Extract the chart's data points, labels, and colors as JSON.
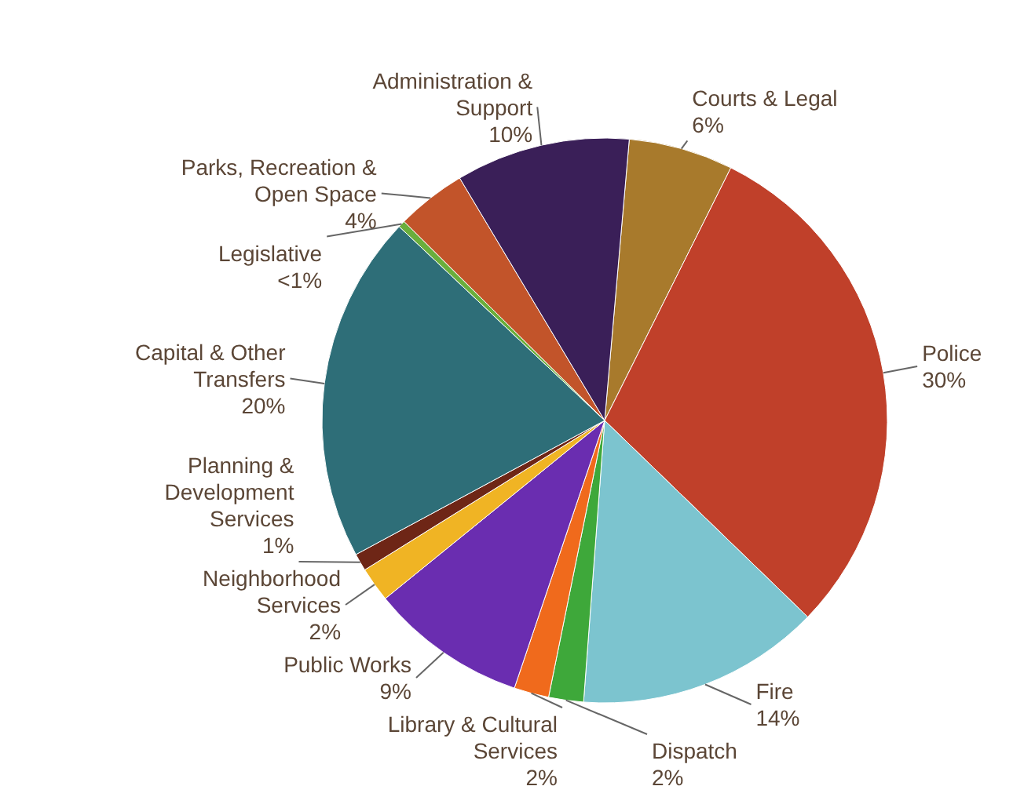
{
  "chart_data": {
    "type": "pie",
    "categories": [
      "Courts & Legal",
      "Police",
      "Fire",
      "Dispatch",
      "Library & Cultural Services",
      "Public Works",
      "Neighborhood Services",
      "Planning & Development Services",
      "Capital & Other Transfers",
      "Legislative",
      "Parks, Recreation & Open Space",
      "Administration & Support"
    ],
    "values": [
      6,
      30,
      14,
      2,
      2,
      9,
      2,
      1,
      20,
      0.4,
      4,
      10
    ],
    "value_labels": [
      "6%",
      "30%",
      "14%",
      "2%",
      "2%",
      "9%",
      "2%",
      "1%",
      "20%",
      "<1%",
      "4%",
      "10%"
    ],
    "colors": [
      "#a87a2c",
      "#c0402a",
      "#7cc4cf",
      "#3ea83a",
      "#f06a1c",
      "#6a2db0",
      "#f0b424",
      "#6e2616",
      "#2e6e78",
      "#6aae3c",
      "#c2542a",
      "#3a1f58"
    ]
  }
}
